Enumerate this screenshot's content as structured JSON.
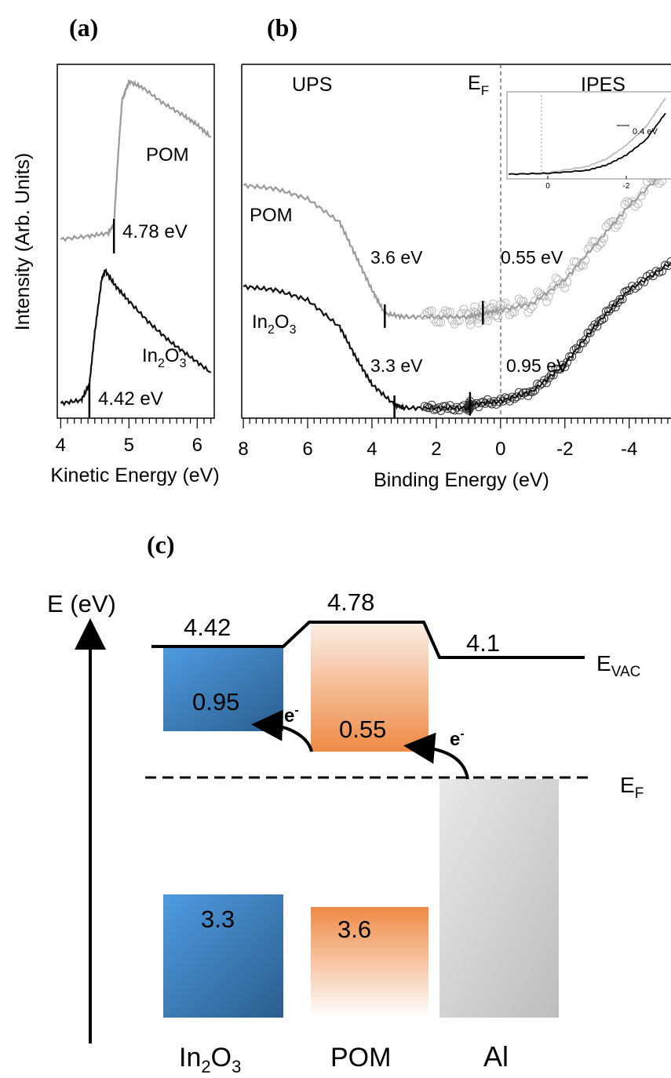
{
  "panel_a": {
    "label": "(a)",
    "ylabel": "Intensity (Arb. Units)",
    "xlabel": "Kinetic Energy (eV)",
    "pom_label": "POM",
    "in_label_base": "In",
    "in_label_sub1": "2",
    "in_label_mid": "O",
    "in_label_sub2": "3",
    "pom_onset_label": "4.78 eV",
    "in_onset_label": "4.42 eV"
  },
  "panel_b": {
    "label": "(b)",
    "xlabel": "Binding Energy (eV)",
    "ups_label": "UPS",
    "ipes_label": "IPES",
    "ef_base": "E",
    "ef_sub": "F",
    "pom_label": "POM",
    "in_label_base": "In",
    "in_label_sub1": "2",
    "in_label_mid": "O",
    "in_label_sub2": "3",
    "pom_vb_label": "3.6 eV",
    "pom_cb_label": "0.55 eV",
    "in_vb_label": "3.3 eV",
    "in_cb_label": "0.95 eV",
    "inset_shift_label": "0.4 eV"
  },
  "panel_c": {
    "label": "(c)",
    "axis_label": "E (eV)",
    "evac_base": "E",
    "evac_sub": "VAC",
    "ef_base": "E",
    "ef_sub": "F",
    "wf_in": "4.42",
    "wf_pom": "4.78",
    "wf_al": "4.1",
    "cb_in": "0.95",
    "cb_pom": "0.55",
    "vb_in": "3.3",
    "vb_pom": "3.6",
    "electron_label_1": "e",
    "electron_label_2": "e",
    "electron_sup": "-",
    "mat_in_base": "In",
    "mat_in_sub1": "2",
    "mat_in_mid": "O",
    "mat_in_sub2": "3",
    "mat_pom": "POM",
    "mat_al": "Al"
  },
  "colors": {
    "pom_trace": "#9a9a9a",
    "in_trace": "#111111",
    "in2o3_block": "#3f86c8",
    "pom_block": "#ef8a45",
    "al_block": "#cfcfcf"
  },
  "chart_data": [
    {
      "type": "line",
      "panel": "a",
      "xlabel": "Kinetic Energy (eV)",
      "ylabel": "Intensity (Arb. Units)",
      "xlim": [
        3.95,
        6.25
      ],
      "xticks": [
        4,
        5,
        6
      ],
      "series": [
        {
          "name": "POM",
          "x": [
            4.0,
            4.4,
            4.7,
            4.78,
            4.85,
            4.9,
            5.0,
            5.2,
            5.5,
            5.8,
            6.0,
            6.2
          ],
          "y": [
            0.55,
            0.56,
            0.57,
            0.6,
            0.85,
            1.0,
            1.06,
            1.04,
            0.99,
            0.95,
            0.92,
            0.88
          ]
        },
        {
          "name": "In2O3",
          "x": [
            4.0,
            4.3,
            4.42,
            4.5,
            4.6,
            4.65,
            4.8,
            5.0,
            5.3,
            5.6,
            5.9,
            6.2
          ],
          "y": [
            0.02,
            0.03,
            0.08,
            0.25,
            0.42,
            0.45,
            0.4,
            0.35,
            0.28,
            0.22,
            0.17,
            0.12
          ]
        }
      ],
      "annotations": [
        {
          "text": "4.78 eV",
          "x": 4.78
        },
        {
          "text": "4.42 eV",
          "x": 4.42
        }
      ]
    },
    {
      "type": "line",
      "panel": "b",
      "xlabel": "Binding Energy (eV)",
      "xlim": [
        8.05,
        -5.3
      ],
      "xticks": [
        8,
        6,
        4,
        2,
        0,
        -2,
        -4
      ],
      "series": [
        {
          "name": "POM",
          "x": [
            8.0,
            7.0,
            6.0,
            5.0,
            4.5,
            4.0,
            3.6,
            3.0,
            2.0,
            1.0,
            0.55,
            0.0,
            -1.0,
            -2.0,
            -3.0,
            -4.0,
            -5.3
          ],
          "y": [
            0.66,
            0.65,
            0.62,
            0.55,
            0.45,
            0.35,
            0.28,
            0.27,
            0.27,
            0.27,
            0.28,
            0.29,
            0.31,
            0.38,
            0.49,
            0.6,
            0.72
          ]
        },
        {
          "name": "In2O3",
          "x": [
            8.0,
            7.0,
            6.0,
            5.0,
            4.5,
            4.0,
            3.3,
            3.0,
            2.0,
            1.0,
            0.95,
            0.0,
            -1.0,
            -2.0,
            -3.0,
            -4.0,
            -5.3
          ],
          "y": [
            0.36,
            0.35,
            0.32,
            0.24,
            0.15,
            0.07,
            0.01,
            0.0,
            0.0,
            0.0,
            0.01,
            0.02,
            0.05,
            0.13,
            0.25,
            0.35,
            0.43
          ]
        }
      ],
      "annotations": [
        {
          "text": "3.6 eV",
          "x": 3.6
        },
        {
          "text": "0.55 eV",
          "x": 0.55
        },
        {
          "text": "3.3 eV",
          "x": 3.3
        },
        {
          "text": "0.95 eV",
          "x": 0.95
        }
      ],
      "inset": {
        "xticks": [
          0,
          -2
        ],
        "annotation": "0.4 eV",
        "series": [
          {
            "x": [
              1.0,
              0.0,
              -1.0,
              -1.5,
              -2.0,
              -2.5,
              -3.0
            ],
            "y": [
              0.0,
              0.02,
              0.1,
              0.2,
              0.38,
              0.62,
              1.0
            ]
          },
          {
            "x": [
              1.0,
              0.0,
              -1.0,
              -1.5,
              -2.0,
              -2.5,
              -3.0
            ],
            "y": [
              0.0,
              0.01,
              0.05,
              0.12,
              0.25,
              0.45,
              0.8
            ]
          }
        ]
      }
    },
    {
      "type": "diagram",
      "panel": "c",
      "ylabel": "E (eV)",
      "materials": [
        "In2O3",
        "POM",
        "Al"
      ],
      "work_function_eV": [
        4.42,
        4.78,
        4.1
      ],
      "cb_offset_eV": [
        0.95,
        0.55,
        null
      ],
      "vb_offset_eV": [
        3.3,
        3.6,
        null
      ]
    }
  ]
}
